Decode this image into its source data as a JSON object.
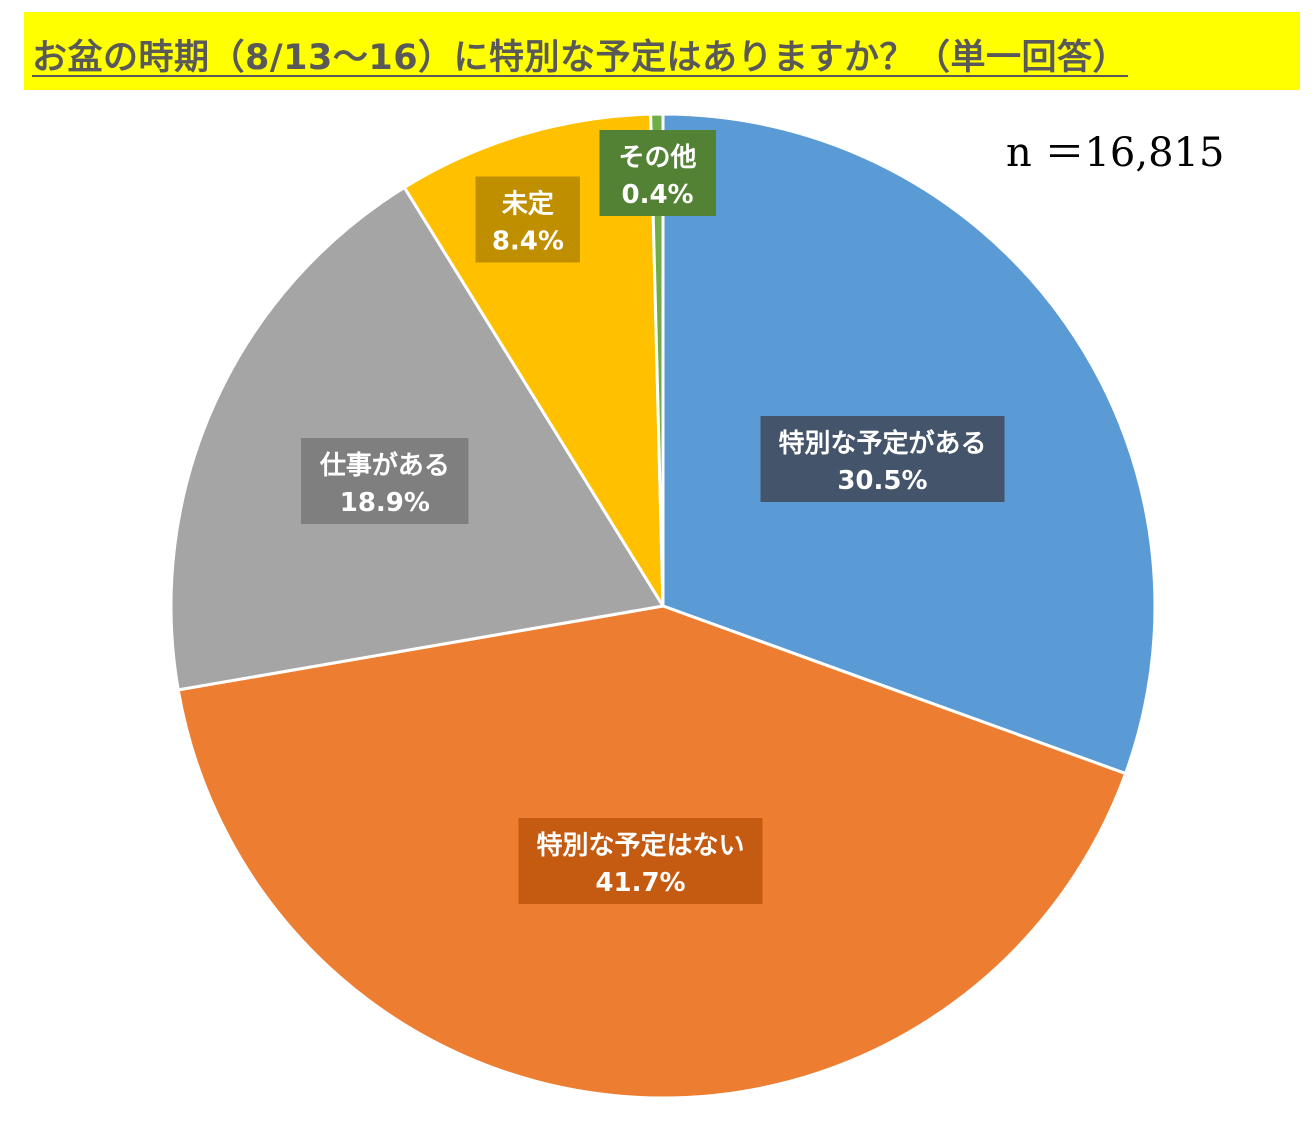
{
  "title": "お盆の時期（8/13〜16）に特別な予定はありますか？（単一回答）",
  "sample_size": "n ＝16,815",
  "colors": {
    "title_bg": "#ffff00",
    "title_text": "#595959"
  },
  "chart_data": {
    "type": "pie",
    "title": "お盆の時期（8/13〜16）に特別な予定はありますか？（単一回答）",
    "start_angle_deg": 0,
    "direction": "clockwise",
    "slices": [
      {
        "label": "特別な予定がある",
        "value": 30.5,
        "value_label": "30.5%",
        "color": "#5b9bd5",
        "label_bg": "#44546a"
      },
      {
        "label": "特別な予定はない",
        "value": 41.7,
        "value_label": "41.7%",
        "color": "#ed7d31",
        "label_bg": "#c55a11"
      },
      {
        "label": "仕事がある",
        "value": 18.9,
        "value_label": "18.9%",
        "color": "#a5a5a5",
        "label_bg": "#7f7f7f"
      },
      {
        "label": "未定",
        "value": 8.4,
        "value_label": "8.4%",
        "color": "#ffc000",
        "label_bg": "#bf8f00"
      },
      {
        "label": "その他",
        "value": 0.4,
        "value_label": "0.4%",
        "color": "#70ad47",
        "label_bg": "#548235"
      }
    ]
  }
}
